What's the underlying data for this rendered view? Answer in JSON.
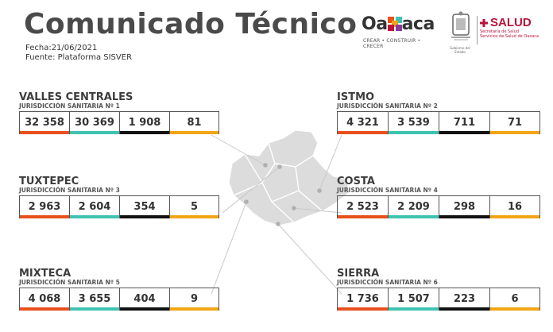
{
  "header": {
    "title": "Comunicado Técnico",
    "date": "Fecha:21/06/2021",
    "source": "Fuente: Plataforma SISVER"
  },
  "logos": {
    "oaxaca_word_a": "Oa",
    "oaxaca_word_b": "aca",
    "oaxaca_tagline": "CREAR • CONSTRUIR • CRECER",
    "gobierno_sub": "Gobierno del Estado",
    "salud_word": "SALUD",
    "salud_sub1": "Secretaría de Salud",
    "salud_sub2": "Servicios de Salud de Oaxaca"
  },
  "colors": {
    "c1": "#e8501c",
    "c2": "#3ec3b0",
    "c3": "#111111",
    "c4": "#f2a516"
  },
  "regions": [
    {
      "name": "VALLES CENTRALES",
      "jurisdiction": "JURISDICCIÓN SANITARIA Nº 1",
      "values": [
        "32 358",
        "30 369",
        "1 908",
        "81"
      ]
    },
    {
      "name": "ISTMO",
      "jurisdiction": "JURISDICCIÓN SANITARIA Nº 2",
      "values": [
        "4 321",
        "3 539",
        "711",
        "71"
      ]
    },
    {
      "name": "TUXTEPEC",
      "jurisdiction": "JURISDICCIÓN SANITARIA Nº 3",
      "values": [
        "2 963",
        "2 604",
        "354",
        "5"
      ]
    },
    {
      "name": "COSTA",
      "jurisdiction": "JURISDICCIÓN SANITARIA Nº 4",
      "values": [
        "2 523",
        "2 209",
        "298",
        "16"
      ]
    },
    {
      "name": "MIXTECA",
      "jurisdiction": "JURISDICCIÓN SANITARIA Nº 5",
      "values": [
        "4 068",
        "3 655",
        "404",
        "9"
      ]
    },
    {
      "name": "SIERRA",
      "jurisdiction": "JURISDICCIÓN SANITARIA Nº 6",
      "values": [
        "1 736",
        "1 507",
        "223",
        "6"
      ]
    }
  ]
}
